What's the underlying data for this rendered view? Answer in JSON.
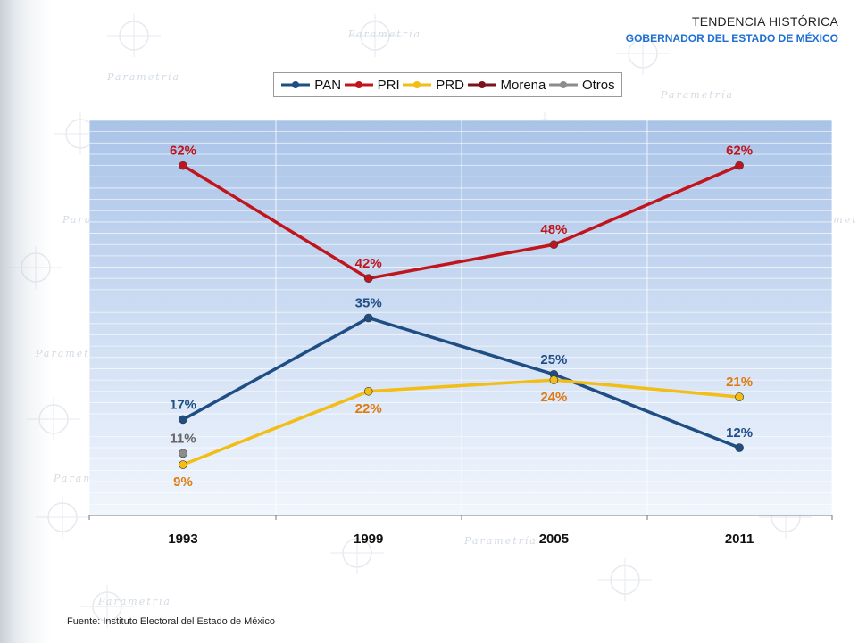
{
  "header": {
    "title": "TENDENCIA HISTÓRICA",
    "subtitle": "GOBERNADOR DEL ESTADO DE MÉXICO"
  },
  "watermark_text": "Parametría",
  "source": "Fuente: Instituto Electoral del Estado de México",
  "colors": {
    "PAN": "#1f4e85",
    "PRI": "#c0151d",
    "PRD": "#f2bd14",
    "Morena": "#7a1418",
    "Otros": "#8c8c8c",
    "prd_label": "#e07a10",
    "otros_label": "#666666"
  },
  "chart_data": {
    "type": "line",
    "title": "",
    "xlabel": "",
    "ylabel": "",
    "categories": [
      "1993",
      "1999",
      "2005",
      "2011"
    ],
    "ylim": [
      0,
      70
    ],
    "grid": true,
    "legend": "top-center",
    "legend_entries": [
      "PAN",
      "PRI",
      "PRD",
      "Morena",
      "Otros"
    ],
    "series": [
      {
        "name": "PAN",
        "values": [
          17,
          35,
          25,
          12
        ],
        "labels": [
          "17%",
          "35%",
          "25%",
          "12%"
        ]
      },
      {
        "name": "PRI",
        "values": [
          62,
          42,
          48,
          62
        ],
        "labels": [
          "62%",
          "42%",
          "48%",
          "62%"
        ]
      },
      {
        "name": "PRD",
        "values": [
          9,
          22,
          24,
          21
        ],
        "labels": [
          "9%",
          "22%",
          "24%",
          "21%"
        ]
      },
      {
        "name": "Morena",
        "values": [
          null,
          null,
          null,
          null
        ],
        "labels": []
      },
      {
        "name": "Otros",
        "values": [
          11,
          null,
          null,
          null
        ],
        "labels": [
          "11%"
        ]
      }
    ]
  }
}
